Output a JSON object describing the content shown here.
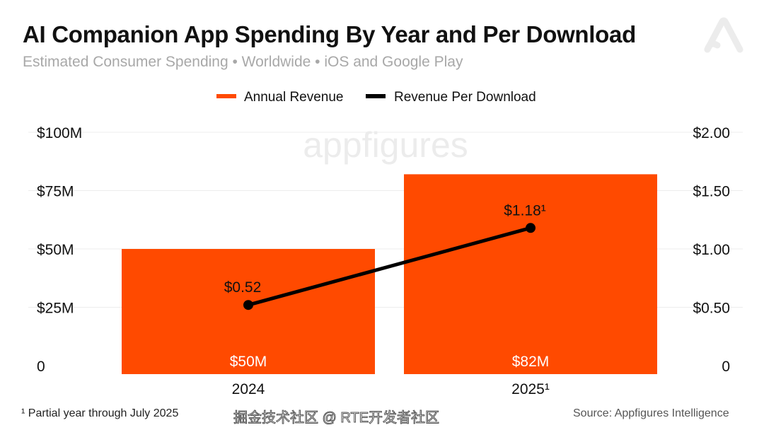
{
  "chart_data": {
    "type": "bar+line",
    "title": "AI Companion App Spending By Year and Per Download",
    "subtitle": "Estimated Consumer Spending • Worldwide • iOS and Google Play",
    "categories": [
      "2024",
      "2025¹"
    ],
    "series": [
      {
        "name": "Annual Revenue",
        "type": "bar",
        "axis": "left",
        "values": [
          50,
          82
        ],
        "labels": [
          "$50M",
          "$82M"
        ],
        "color": "#ff4a00"
      },
      {
        "name": "Revenue Per Download",
        "type": "line",
        "axis": "right",
        "values": [
          0.52,
          1.18
        ],
        "labels": [
          "$0.52",
          "$1.18¹"
        ],
        "color": "#000000"
      }
    ],
    "left_axis": {
      "ylim": [
        0,
        100
      ],
      "ticks": [
        0,
        25,
        50,
        75,
        100
      ],
      "tick_labels": [
        "0",
        "$25M",
        "$50M",
        "$75M",
        "$100M"
      ]
    },
    "right_axis": {
      "ylim": [
        0,
        2
      ],
      "ticks": [
        0,
        0.5,
        1,
        1.5,
        2
      ],
      "tick_labels": [
        "0",
        "$0.50",
        "$1.00",
        "$1.50",
        "$2.00"
      ]
    },
    "grid": true,
    "legend_position": "top-center",
    "watermark": "appfigures",
    "footnote": "¹ Partial year through July 2025",
    "source": "Source: Appfigures Intelligence"
  },
  "overlay_watermark": "掘金技术社区 @ RTE开发者社区"
}
